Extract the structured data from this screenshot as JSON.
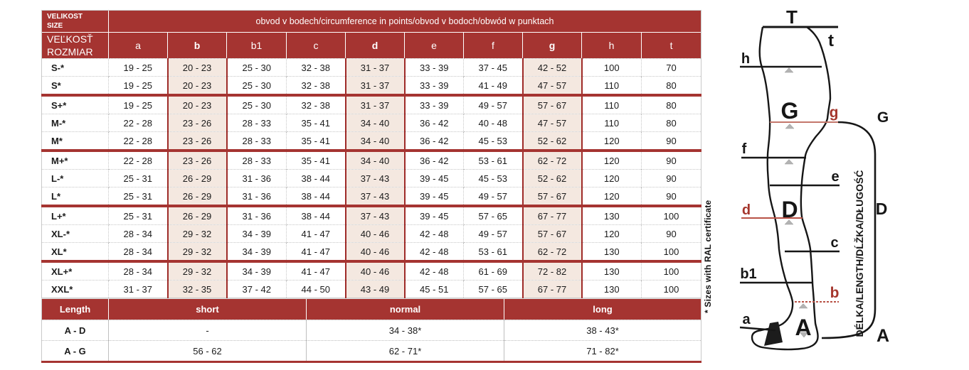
{
  "colors": {
    "header_red": "#A53431",
    "highlight_beige": "#F4E8E0",
    "highlight_border_red": "#9E2B28",
    "diagram_red": "#A5362D",
    "diagram_red_line": "#C4776B",
    "triangle_gray": "#B3B3B3"
  },
  "size_table": {
    "corner_top": [
      "VELIKOST",
      "SIZE"
    ],
    "corner_bottom": [
      "VEĽKOSŤ",
      "ROZMIAR"
    ],
    "title": "obvod v bodech/circumference in points/obvod v bodoch/obwód w punktach",
    "columns": [
      "a",
      "b",
      "b1",
      "c",
      "d",
      "e",
      "f",
      "g",
      "h",
      "t"
    ],
    "bold_columns": [
      "b",
      "d",
      "g"
    ],
    "rows": [
      {
        "size": "S-*",
        "group_start": false,
        "values": [
          "19 - 25",
          "20 - 23",
          "25 - 30",
          "32 - 38",
          "31 - 37",
          "33 - 39",
          "37 - 45",
          "42 - 52",
          "100",
          "70"
        ]
      },
      {
        "size": "S*",
        "group_start": false,
        "values": [
          "19 - 25",
          "20 - 23",
          "25 - 30",
          "32 - 38",
          "31 - 37",
          "33 - 39",
          "41 - 49",
          "47 - 57",
          "110",
          "80"
        ]
      },
      {
        "size": "S+*",
        "group_start": true,
        "values": [
          "19 - 25",
          "20 - 23",
          "25 - 30",
          "32 - 38",
          "31 - 37",
          "33 - 39",
          "49 - 57",
          "57 - 67",
          "110",
          "80"
        ]
      },
      {
        "size": "M-*",
        "group_start": false,
        "values": [
          "22 - 28",
          "23 - 26",
          "28 - 33",
          "35 - 41",
          "34 - 40",
          "36 - 42",
          "40 - 48",
          "47 - 57",
          "110",
          "80"
        ]
      },
      {
        "size": "M*",
        "group_start": false,
        "values": [
          "22 - 28",
          "23 - 26",
          "28 - 33",
          "35 - 41",
          "34 - 40",
          "36 - 42",
          "45 - 53",
          "52 - 62",
          "120",
          "90"
        ]
      },
      {
        "size": "M+*",
        "group_start": true,
        "values": [
          "22 - 28",
          "23 - 26",
          "28 - 33",
          "35 - 41",
          "34 - 40",
          "36 - 42",
          "53 - 61",
          "62 - 72",
          "120",
          "90"
        ]
      },
      {
        "size": "L-*",
        "group_start": false,
        "values": [
          "25 - 31",
          "26 - 29",
          "31 - 36",
          "38 - 44",
          "37 - 43",
          "39 - 45",
          "45 - 53",
          "52 - 62",
          "120",
          "90"
        ]
      },
      {
        "size": "L*",
        "group_start": false,
        "values": [
          "25 - 31",
          "26 - 29",
          "31 - 36",
          "38 - 44",
          "37 - 43",
          "39 - 45",
          "49 - 57",
          "57 - 67",
          "120",
          "90"
        ]
      },
      {
        "size": "L+*",
        "group_start": true,
        "values": [
          "25 - 31",
          "26 - 29",
          "31 - 36",
          "38 - 44",
          "37 - 43",
          "39 - 45",
          "57 - 65",
          "67 - 77",
          "130",
          "100"
        ]
      },
      {
        "size": "XL-*",
        "group_start": false,
        "values": [
          "28 - 34",
          "29 - 32",
          "34 - 39",
          "41 - 47",
          "40 - 46",
          "42 - 48",
          "49 - 57",
          "57 - 67",
          "120",
          "90"
        ]
      },
      {
        "size": "XL*",
        "group_start": false,
        "values": [
          "28 - 34",
          "29 - 32",
          "34 - 39",
          "41 - 47",
          "40 - 46",
          "42 - 48",
          "53 - 61",
          "62 - 72",
          "130",
          "100"
        ]
      },
      {
        "size": "XL+*",
        "group_start": true,
        "values": [
          "28 - 34",
          "29 - 32",
          "34 - 39",
          "41 - 47",
          "40 - 46",
          "42 - 48",
          "61 - 69",
          "72 - 82",
          "130",
          "100"
        ]
      },
      {
        "size": "XXL*",
        "group_start": false,
        "values": [
          "31 - 37",
          "32 - 35",
          "37 - 42",
          "44 - 50",
          "43 - 49",
          "45 - 51",
          "57 - 65",
          "67 - 77",
          "130",
          "100"
        ]
      }
    ]
  },
  "length_table": {
    "header_label": "Length",
    "header_options": [
      "short",
      "normal",
      "long"
    ],
    "rows": [
      {
        "label": "A - D",
        "values": [
          "-",
          "34 - 38*",
          "38 - 43*"
        ]
      },
      {
        "label": "A - G",
        "values": [
          "56 - 62",
          "62 - 71*",
          "71 - 82*"
        ]
      }
    ]
  },
  "footnote": "* Sizes with RAL certificate",
  "diagram": {
    "point_labels": {
      "T": "T",
      "t": "t",
      "h": "h",
      "G": "G",
      "g": "g",
      "f": "f",
      "e": "e",
      "d": "d",
      "D": "D",
      "c": "c",
      "b1": "b1",
      "b": "b",
      "a": "a",
      "A": "A"
    },
    "bracket_labels": {
      "G": "G",
      "D": "D",
      "A": "A"
    },
    "axis_label": "DÉLKA/LENGTH/DĹŽKA/DŁUGOŚĆ"
  }
}
